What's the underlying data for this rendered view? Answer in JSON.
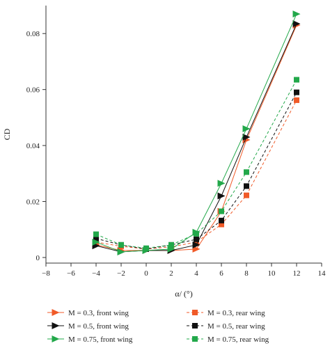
{
  "chart_data": {
    "type": "line",
    "xlabel": "α/ (°)",
    "ylabel": "CD",
    "xlim": [
      -8,
      14
    ],
    "ylim": [
      -0.002,
      0.09
    ],
    "xticks": [
      -8,
      -6,
      -4,
      -2,
      0,
      2,
      4,
      6,
      8,
      10,
      12,
      14
    ],
    "yticks": [
      0,
      0.02,
      0.04,
      0.06,
      0.08
    ],
    "ytick_labels": [
      "0",
      "0.02",
      "0.04",
      "0.06",
      "0.08"
    ],
    "x": [
      -4,
      -2,
      0,
      2,
      4,
      6,
      8,
      12
    ],
    "grid": false,
    "legend_position": "bottom",
    "series": [
      {
        "name": "M = 0.3, front wing",
        "color": "#f05a28",
        "marker": "triangle-right",
        "dash": "solid",
        "values": [
          0.0045,
          0.0025,
          0.0025,
          0.0025,
          0.003,
          0.0165,
          0.042,
          0.083
        ]
      },
      {
        "name": "M = 0.3, rear wing",
        "color": "#f05a28",
        "marker": "square",
        "dash": "dashed",
        "values": [
          0.0055,
          0.004,
          0.003,
          0.0038,
          0.0055,
          0.0118,
          0.0222,
          0.0562
        ]
      },
      {
        "name": "M = 0.5, front wing",
        "color": "#111111",
        "marker": "triangle-right",
        "dash": "solid",
        "values": [
          0.0042,
          0.002,
          0.0025,
          0.0025,
          0.0045,
          0.022,
          0.043,
          0.0835
        ]
      },
      {
        "name": "M = 0.5, rear wing",
        "color": "#111111",
        "marker": "square",
        "dash": "dashed",
        "values": [
          0.0068,
          0.0045,
          0.003,
          0.0045,
          0.0065,
          0.0132,
          0.0255,
          0.059
        ]
      },
      {
        "name": "M = 0.75, front wing",
        "color": "#22a84a",
        "marker": "triangle-right",
        "dash": "solid",
        "values": [
          0.0055,
          0.002,
          0.0025,
          0.003,
          0.009,
          0.0265,
          0.046,
          0.087
        ]
      },
      {
        "name": "M = 0.75, rear wing",
        "color": "#22a84a",
        "marker": "square",
        "dash": "dashed",
        "values": [
          0.0083,
          0.0045,
          0.0033,
          0.0045,
          0.0085,
          0.0165,
          0.0305,
          0.0635
        ]
      }
    ]
  }
}
